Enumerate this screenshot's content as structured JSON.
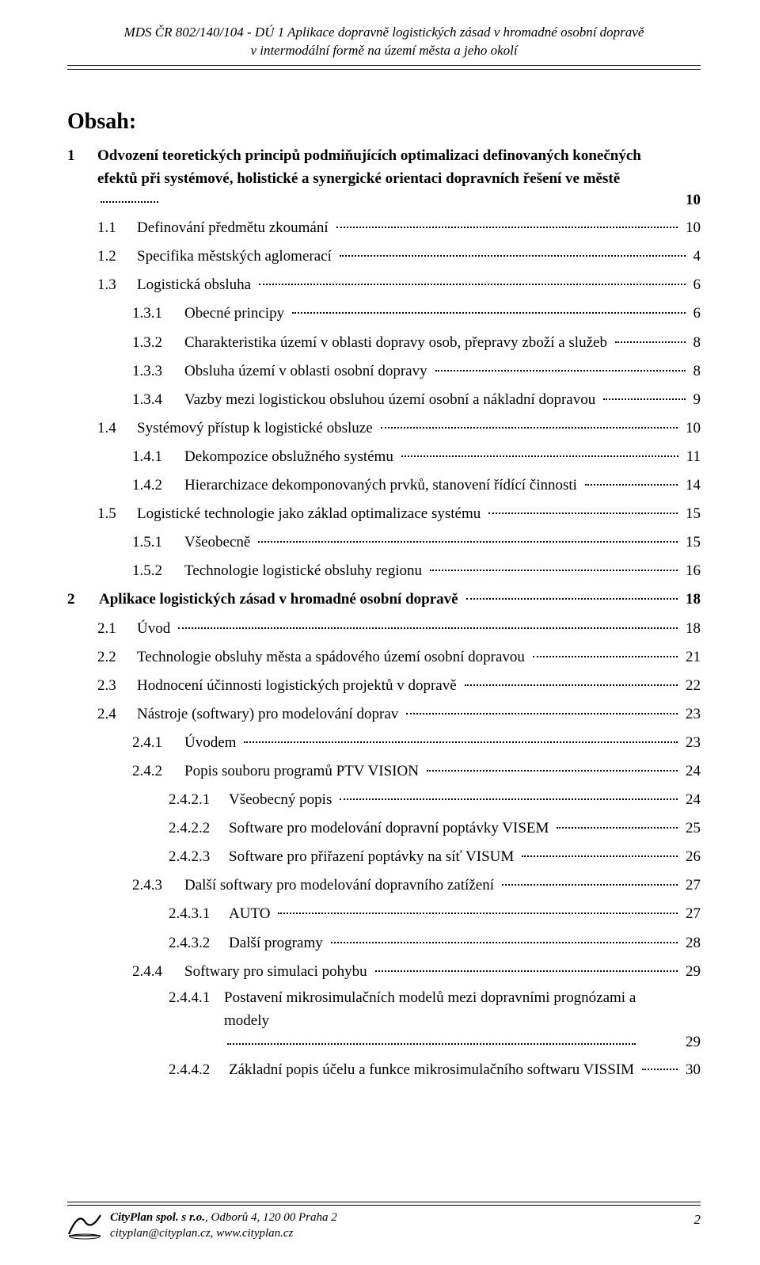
{
  "header": {
    "line1": "MDS ČR  802/140/104 - DÚ 1 Aplikace dopravně logistických zásad v hromadné osobní dopravě",
    "line2": "v intermodální formě na území města a jeho okolí"
  },
  "title": "Obsah:",
  "toc": [
    {
      "lvl": 0,
      "bold": true,
      "num": "1",
      "text": "Odvození teoretických principů podmiňujících optimalizaci definovaných konečných efektů při systémové, holistické a synergické orientaci dopravních řešení ve městě",
      "page": "10",
      "multiline": true
    },
    {
      "lvl": 1,
      "num": "1.1",
      "text": "Definování předmětu zkoumání",
      "page": "10"
    },
    {
      "lvl": 1,
      "num": "1.2",
      "text": "Specifika městských aglomerací",
      "page": "4"
    },
    {
      "lvl": 1,
      "num": "1.3",
      "text": "Logistická obsluha",
      "page": "6"
    },
    {
      "lvl": 2,
      "num": "1.3.1",
      "text": "Obecné principy",
      "page": "6"
    },
    {
      "lvl": 2,
      "num": "1.3.2",
      "text": "Charakteristika území v oblasti dopravy osob, přepravy zboží a služeb",
      "page": "8"
    },
    {
      "lvl": 2,
      "num": "1.3.3",
      "text": "Obsluha území v oblasti osobní dopravy",
      "page": "8"
    },
    {
      "lvl": 2,
      "num": "1.3.4",
      "text": "Vazby mezi logistickou obsluhou území osobní a nákladní dopravou",
      "page": "9"
    },
    {
      "lvl": 1,
      "num": "1.4",
      "text": "Systémový přístup k logistické obsluze",
      "page": "10"
    },
    {
      "lvl": 2,
      "num": "1.4.1",
      "text": "Dekompozice obslužného systému",
      "page": "11"
    },
    {
      "lvl": 2,
      "num": "1.4.2",
      "text": "Hierarchizace dekomponovaných prvků, stanovení řídící činnosti",
      "page": "14"
    },
    {
      "lvl": 1,
      "num": "1.5",
      "text": "Logistické technologie jako základ optimalizace systému",
      "page": "15"
    },
    {
      "lvl": 2,
      "num": "1.5.1",
      "text": "Všeobecně",
      "page": "15"
    },
    {
      "lvl": 2,
      "num": "1.5.2",
      "text": "Technologie logistické obsluhy regionu",
      "page": "16"
    },
    {
      "lvl": 0,
      "bold": true,
      "num": "2",
      "text": "Aplikace logistických zásad v hromadné osobní dopravě",
      "page": "18"
    },
    {
      "lvl": 1,
      "num": "2.1",
      "text": "Úvod",
      "page": "18"
    },
    {
      "lvl": 1,
      "num": "2.2",
      "text": "Technologie obsluhy města a spádového území osobní dopravou",
      "page": "21"
    },
    {
      "lvl": 1,
      "num": "2.3",
      "text": "Hodnocení účinnosti logistických projektů v dopravě",
      "page": "22"
    },
    {
      "lvl": 1,
      "num": "2.4",
      "text": "Nástroje (softwary) pro modelování doprav",
      "page": "23"
    },
    {
      "lvl": 2,
      "num": "2.4.1",
      "text": "Úvodem",
      "page": "23"
    },
    {
      "lvl": 2,
      "num": "2.4.2",
      "text": "Popis souboru programů PTV VISION",
      "page": "24"
    },
    {
      "lvl": 3,
      "num": "2.4.2.1",
      "text": "Všeobecný popis",
      "page": "24"
    },
    {
      "lvl": 3,
      "num": "2.4.2.2",
      "text": "Software pro modelování dopravní poptávky VISEM",
      "page": "25"
    },
    {
      "lvl": 3,
      "num": "2.4.2.3",
      "text": "Software pro přiřazení poptávky na síť VISUM",
      "page": "26"
    },
    {
      "lvl": 2,
      "num": "2.4.3",
      "text": "Další softwary pro modelování dopravního zatížení",
      "page": "27"
    },
    {
      "lvl": 3,
      "num": "2.4.3.1",
      "text": "AUTO",
      "page": "27"
    },
    {
      "lvl": 3,
      "num": "2.4.3.2",
      "text": "Další programy",
      "page": "28"
    },
    {
      "lvl": 2,
      "num": "2.4.4",
      "text": "Softwary pro simulaci pohybu",
      "page": "29"
    },
    {
      "lvl": 3,
      "num": "2.4.4.1",
      "text": "Postavení mikrosimulačních modelů mezi dopravními prognózami a modely",
      "page": "29",
      "multiline": true
    },
    {
      "lvl": 3,
      "num": "2.4.4.2",
      "text": "Základní popis účelu a funkce mikrosimulačního softwaru VISSIM",
      "page": "30"
    }
  ],
  "footer": {
    "company": "CityPlan spol. s r.o.",
    "address": ", Odborů 4, 120 00 Praha 2",
    "contact": "cityplan@cityplan.cz, www.cityplan.cz",
    "page": "2"
  }
}
